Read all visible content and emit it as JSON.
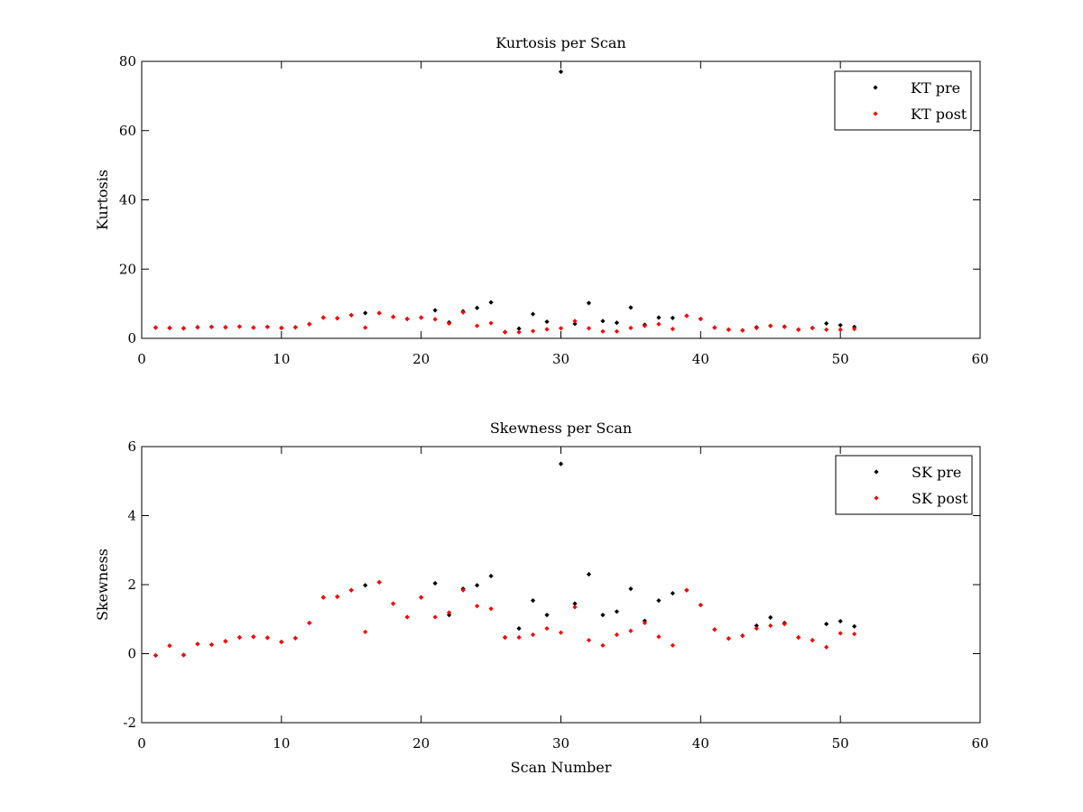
{
  "chart_data": [
    {
      "type": "scatter",
      "title": "Kurtosis per Scan",
      "xlabel": "",
      "ylabel": "Kurtosis",
      "xlim": [
        0,
        60
      ],
      "ylim": [
        0,
        80
      ],
      "xticks": [
        0,
        10,
        20,
        30,
        40,
        50,
        60
      ],
      "yticks": [
        0,
        20,
        40,
        60,
        80
      ],
      "grid": false,
      "legend_position": "top-right",
      "series": [
        {
          "name": "KT pre",
          "color": "#000000",
          "x": [
            1,
            2,
            3,
            4,
            5,
            6,
            7,
            8,
            9,
            10,
            11,
            12,
            13,
            14,
            15,
            16,
            17,
            18,
            19,
            20,
            21,
            22,
            23,
            24,
            25,
            26,
            27,
            28,
            29,
            30,
            31,
            32,
            33,
            34,
            35,
            36,
            37,
            38,
            39,
            40,
            41,
            42,
            43,
            44,
            45,
            46,
            47,
            48,
            49,
            50,
            51
          ],
          "y": [
            3.1,
            3.0,
            2.9,
            3.2,
            3.3,
            3.2,
            3.4,
            3.1,
            3.3,
            3.0,
            3.2,
            4.1,
            6.0,
            5.8,
            6.7,
            7.3,
            7.3,
            6.2,
            5.6,
            6.0,
            8.1,
            4.6,
            7.8,
            8.8,
            10.4,
            1.8,
            2.8,
            7.0,
            4.8,
            77.0,
            4.2,
            10.2,
            5.0,
            4.5,
            8.9,
            3.9,
            6.0,
            5.9,
            6.5,
            5.6,
            3.1,
            2.5,
            2.3,
            3.2,
            3.6,
            3.4,
            2.5,
            3.0,
            4.3,
            3.8,
            3.3
          ]
        },
        {
          "name": "KT post",
          "color": "#ff0000",
          "x": [
            1,
            2,
            3,
            4,
            5,
            6,
            7,
            8,
            9,
            10,
            11,
            12,
            13,
            14,
            15,
            16,
            17,
            18,
            19,
            20,
            21,
            22,
            23,
            24,
            25,
            26,
            27,
            28,
            29,
            30,
            31,
            32,
            33,
            34,
            35,
            36,
            37,
            38,
            39,
            40,
            41,
            42,
            43,
            44,
            45,
            46,
            47,
            48,
            49,
            50,
            51
          ],
          "y": [
            3.1,
            3.0,
            2.9,
            3.2,
            3.3,
            3.2,
            3.4,
            3.1,
            3.3,
            3.0,
            3.2,
            4.1,
            6.0,
            5.8,
            6.7,
            3.1,
            7.3,
            6.2,
            5.6,
            6.0,
            5.5,
            4.3,
            7.5,
            3.6,
            4.4,
            1.8,
            1.8,
            2.1,
            2.6,
            2.9,
            5.0,
            2.9,
            2.0,
            2.0,
            3.0,
            3.6,
            4.1,
            2.7,
            6.5,
            5.6,
            3.1,
            2.5,
            2.3,
            3.0,
            3.6,
            3.3,
            2.5,
            3.0,
            2.5,
            2.5,
            2.7
          ]
        }
      ]
    },
    {
      "type": "scatter",
      "title": "Skewness per Scan",
      "xlabel": "Scan Number",
      "ylabel": "Skewness",
      "xlim": [
        0,
        60
      ],
      "ylim": [
        -2,
        6
      ],
      "xticks": [
        0,
        10,
        20,
        30,
        40,
        50,
        60
      ],
      "yticks": [
        -2,
        0,
        2,
        4,
        6
      ],
      "grid": false,
      "legend_position": "top-right",
      "series": [
        {
          "name": "SK pre",
          "color": "#000000",
          "x": [
            1,
            2,
            3,
            4,
            5,
            6,
            7,
            8,
            9,
            10,
            11,
            12,
            13,
            14,
            15,
            16,
            17,
            18,
            19,
            20,
            21,
            22,
            23,
            24,
            25,
            26,
            27,
            28,
            29,
            30,
            31,
            32,
            33,
            34,
            35,
            36,
            37,
            38,
            39,
            40,
            41,
            42,
            43,
            44,
            45,
            46,
            47,
            48,
            49,
            50,
            51
          ],
          "y": [
            -0.05,
            0.23,
            -0.04,
            0.28,
            0.26,
            0.36,
            0.47,
            0.49,
            0.46,
            0.34,
            0.45,
            0.89,
            1.63,
            1.65,
            1.84,
            1.98,
            2.07,
            1.45,
            1.06,
            1.63,
            2.04,
            1.12,
            1.88,
            1.98,
            2.25,
            0.47,
            0.73,
            1.54,
            1.12,
            5.5,
            1.45,
            2.3,
            1.12,
            1.22,
            1.88,
            0.95,
            1.54,
            1.75,
            1.84,
            1.41,
            0.7,
            0.44,
            0.52,
            0.81,
            1.05,
            0.89,
            0.47,
            0.39,
            0.86,
            0.94,
            0.79
          ]
        },
        {
          "name": "SK post",
          "color": "#ff0000",
          "x": [
            1,
            2,
            3,
            4,
            5,
            6,
            7,
            8,
            9,
            10,
            11,
            12,
            13,
            14,
            15,
            16,
            17,
            18,
            19,
            20,
            21,
            22,
            23,
            24,
            25,
            26,
            27,
            28,
            29,
            30,
            31,
            32,
            33,
            34,
            35,
            36,
            37,
            38,
            39,
            40,
            41,
            42,
            43,
            44,
            45,
            46,
            47,
            48,
            49,
            50,
            51
          ],
          "y": [
            -0.05,
            0.23,
            -0.04,
            0.28,
            0.26,
            0.36,
            0.47,
            0.49,
            0.46,
            0.34,
            0.45,
            0.89,
            1.63,
            1.65,
            1.84,
            0.63,
            2.07,
            1.45,
            1.06,
            1.63,
            1.06,
            1.19,
            1.84,
            1.38,
            1.3,
            0.47,
            0.47,
            0.55,
            0.73,
            0.61,
            1.35,
            0.39,
            0.24,
            0.55,
            0.66,
            0.89,
            0.49,
            0.24,
            1.84,
            1.41,
            0.7,
            0.44,
            0.52,
            0.73,
            0.81,
            0.86,
            0.47,
            0.39,
            0.19,
            0.59,
            0.57
          ]
        }
      ]
    }
  ]
}
